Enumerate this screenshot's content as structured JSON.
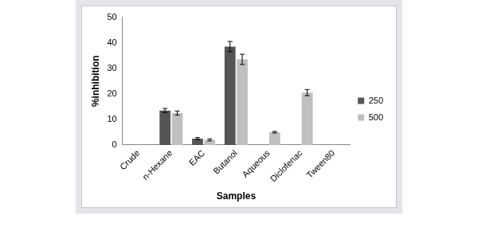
{
  "chart_data": {
    "type": "bar",
    "categories": [
      "Crude",
      "n-Hexane",
      "EAC",
      "Butanol",
      "Aqueous",
      "Diclofenac",
      "Tween80"
    ],
    "series": [
      {
        "name": "250",
        "color": "#555555",
        "values": [
          0,
          13.5,
          2.5,
          38.5,
          0,
          0,
          0
        ],
        "errors": [
          0,
          0.8,
          0.4,
          2,
          0,
          0,
          0
        ]
      },
      {
        "name": "500",
        "color": "#bfbfbf",
        "values": [
          0,
          12.5,
          2,
          33.5,
          5,
          20.5,
          0
        ],
        "errors": [
          0,
          0.8,
          0.4,
          2,
          0.3,
          1.2,
          0
        ]
      }
    ],
    "x_label": "Samples",
    "y_label": "%inhibition",
    "ylim": [
      0,
      50
    ],
    "yticks": [
      0,
      10,
      20,
      30,
      40,
      50
    ],
    "grid": false,
    "legend": "right"
  }
}
